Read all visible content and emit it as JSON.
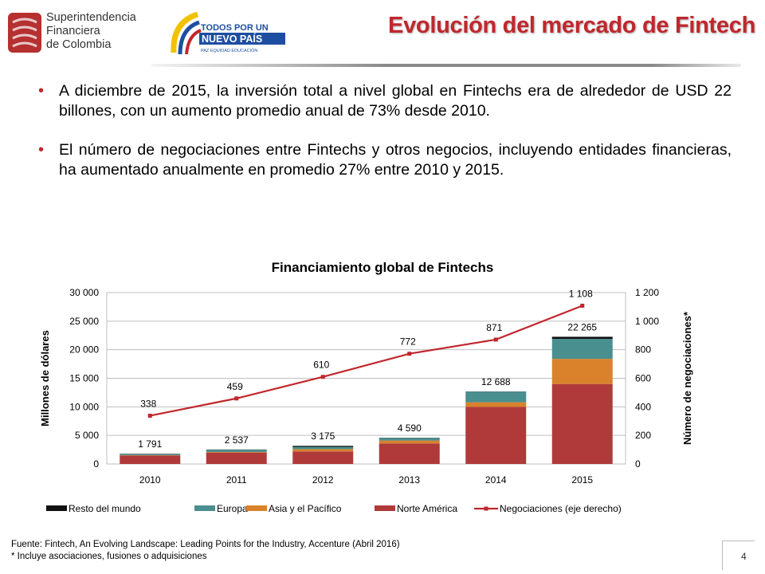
{
  "header": {
    "sfc_name_lines": [
      "Superintendencia",
      "Financiera",
      "de Colombia"
    ],
    "gov_logo_lines": [
      "TODOS POR UN",
      "NUEVO PAÍS",
      "PAZ  EQUIDAD  EDUCACIÓN"
    ],
    "title": "Evolución del mercado de Fintech"
  },
  "bullets": [
    "A diciembre de 2015, la inversión total a nivel global en Fintechs era de alrededor de USD 22 billones, con un aumento promedio anual de 73% desde 2010.",
    "El número de negociaciones entre Fintechs y otros negocios, incluyendo entidades financieras, ha aumentado anualmente en promedio 27% entre 2010 y 2015."
  ],
  "chart_data": {
    "type": "bar",
    "stacked": true,
    "title": "Financiamiento global de Fintechs",
    "ylabel": "Millones de dólares",
    "y2label": "Número de negociaciones*",
    "categories": [
      "2010",
      "2011",
      "2012",
      "2013",
      "2014",
      "2015"
    ],
    "ylim": [
      0,
      30000
    ],
    "yticks": [
      0,
      5000,
      10000,
      15000,
      20000,
      25000,
      30000
    ],
    "ytick_labels": [
      "0",
      "5 000",
      "10 000",
      "15 000",
      "20 000",
      "25 000",
      "30 000"
    ],
    "y2lim": [
      0,
      1200
    ],
    "y2ticks": [
      0,
      200,
      400,
      600,
      800,
      1000,
      1200
    ],
    "y2tick_labels": [
      "0",
      "200",
      "400",
      "600",
      "800",
      "1 000",
      "1 200"
    ],
    "grid": true,
    "legend_position": "bottom",
    "series": [
      {
        "name": "Norte América",
        "color": "#b03a3a",
        "values": [
          1500,
          2000,
          2200,
          3600,
          10000,
          14000
        ]
      },
      {
        "name": "Asia y el Pacífico",
        "color": "#d9822b",
        "values": [
          50,
          100,
          400,
          500,
          800,
          4400
        ]
      },
      {
        "name": "Europa",
        "color": "#4a8f8f",
        "values": [
          200,
          400,
          400,
          450,
          1850,
          3500
        ]
      },
      {
        "name": "Resto del mundo",
        "color": "#111111",
        "values": [
          41,
          37,
          175,
          40,
          38,
          365
        ]
      }
    ],
    "totals": [
      1791,
      2537,
      3175,
      4590,
      12688,
      22265
    ],
    "total_labels": [
      "1 791",
      "2 537",
      "3 175",
      "4 590",
      "12 688",
      "22 265"
    ],
    "line_series": {
      "name": "Negociaciones (eje derecho)",
      "color": "#c0272d",
      "values": [
        338,
        459,
        610,
        772,
        871,
        1108
      ],
      "labels": [
        "338",
        "459",
        "610",
        "772",
        "871",
        "1 108"
      ]
    },
    "legend_order": [
      "Resto del mundo",
      "Europa",
      "Asia y el Pacífico",
      "Norte América",
      "Negociaciones (eje derecho)"
    ]
  },
  "footer": {
    "source": "Fuente: Fintech, An Evolving Landscape: Leading Points for the Industry, Accenture (Abril 2016)",
    "note": "* Incluye asociaciones, fusiones o adquisiciones"
  },
  "page_number": "4"
}
